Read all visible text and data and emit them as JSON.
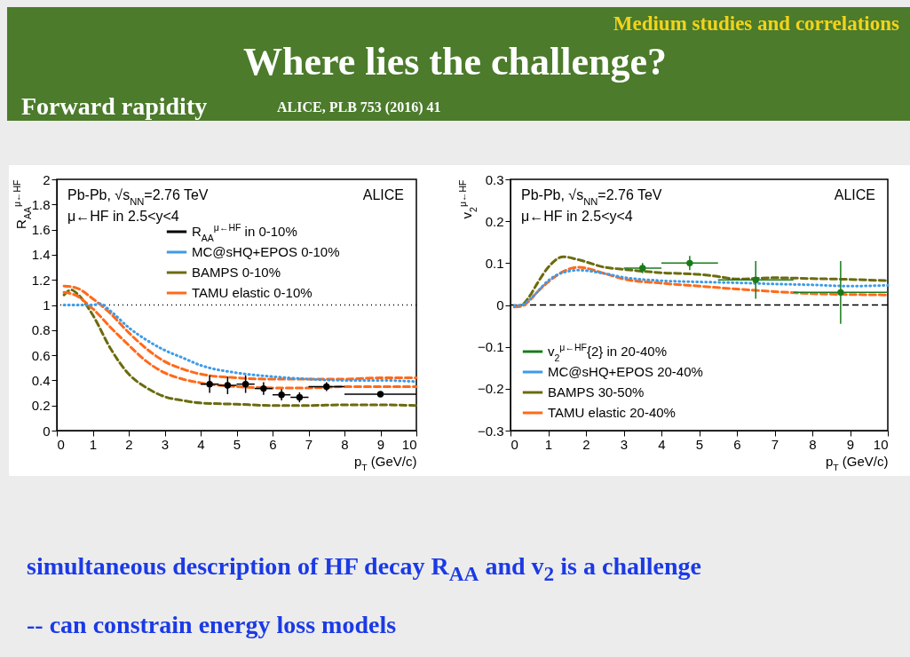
{
  "chart_data": [
    {
      "type": "line",
      "title": "Where lies the challenge?",
      "annotations": [
        "Pb-Pb, √s$_{NN}$=2.76 TeV",
        "μ←HF in 2.5<y<4",
        "ALICE",
        "Forward rapidity",
        "ALICE, PLB 753 (2016) 41",
        "simultaneous description of HF decay R$_{AA}$ and v$_{2}$ is a challenge",
        "-- can constrain energy loss models",
        "Medium studies and correlations"
      ],
      "xlabel": "p$_{T}$ (GeV/c)",
      "ylabel": "R$_{AA}$$^{μ←HF}$",
      "xlim": [
        0,
        10
      ],
      "xticks": [
        0,
        1,
        2,
        3,
        4,
        5,
        6,
        7,
        8,
        9,
        10
      ],
      "ylim": [
        0,
        2
      ],
      "yticks": [
        0,
        0.2,
        0.4,
        0.6,
        0.8,
        1,
        1.2,
        1.4,
        1.6,
        1.8,
        2
      ],
      "legend": "top right",
      "ref_lines": [
        {
          "axis": "y",
          "value": 1,
          "color": "#000000",
          "line_style": "dotted"
        }
      ],
      "series": [
        {
          "name": "R$_{AA}$$^{μ←HF}$ in 0-10%",
          "type": "scatter",
          "marker": "circle",
          "color": "#000000",
          "x": [
            4.25,
            4.75,
            5.25,
            5.75,
            6.25,
            6.75,
            7.5,
            9
          ],
          "values": [
            0.37,
            0.36,
            0.37,
            0.335,
            0.285,
            0.265,
            0.35,
            0.29
          ],
          "errors": [
            0.07,
            0.07,
            0.07,
            0.05,
            0.045,
            0.04,
            0.035,
            0.02
          ],
          "xerrors": [
            0.25,
            0.25,
            0.25,
            0.25,
            0.25,
            0.25,
            0.5,
            1
          ]
        },
        {
          "name": "MC@sHQ+EPOS 0-10%",
          "type": "line",
          "line_style": "dotted",
          "color": "#3d9be9",
          "x": [
            0.2,
            0.6,
            1,
            1.2,
            1.5,
            2,
            2.5,
            3,
            3.5,
            4,
            5,
            6,
            7,
            8,
            9,
            10
          ],
          "values": [
            1,
            1,
            1,
            1.01,
            0.95,
            0.82,
            0.72,
            0.64,
            0.58,
            0.52,
            0.46,
            0.43,
            0.41,
            0.4,
            0.4,
            0.39
          ]
        },
        {
          "name": "BAMPS 0-10%",
          "type": "line",
          "line_style": "dashed",
          "color": "#6b6b10",
          "x": [
            0.2,
            0.4,
            0.6,
            1,
            1.5,
            2,
            2.5,
            3,
            3.5,
            4,
            5,
            6,
            7,
            8,
            9,
            10
          ],
          "values": [
            1.08,
            1.12,
            1.08,
            0.92,
            0.65,
            0.45,
            0.34,
            0.27,
            0.24,
            0.22,
            0.21,
            0.2,
            0.2,
            0.205,
            0.205,
            0.2
          ]
        },
        {
          "name": "TAMU elastic 0-10%",
          "type": "line",
          "line_style": "dashed",
          "color": "#ff6a1a",
          "x": [
            0.2,
            0.5,
            1,
            1.5,
            2,
            2.5,
            3,
            3.5,
            4,
            5,
            6,
            7,
            8,
            9,
            10
          ],
          "values": [
            1.15,
            1.14,
            1.05,
            0.93,
            0.78,
            0.65,
            0.55,
            0.49,
            0.45,
            0.42,
            0.41,
            0.41,
            0.41,
            0.42,
            0.42
          ]
        },
        {
          "type": "line",
          "line_style": "dashed",
          "color": "#ff6a1a",
          "x": [
            0.2,
            0.5,
            1,
            1.5,
            2,
            2.5,
            3,
            3.5,
            4,
            5,
            6,
            7,
            8,
            9,
            10
          ],
          "values": [
            1.1,
            1.08,
            0.97,
            0.82,
            0.68,
            0.55,
            0.46,
            0.41,
            0.38,
            0.35,
            0.34,
            0.34,
            0.35,
            0.35,
            0.35
          ]
        }
      ]
    },
    {
      "type": "line",
      "annotations": [
        "Pb-Pb, √s$_{NN}$=2.76 TeV",
        "μ←HF in 2.5<y<4",
        "ALICE"
      ],
      "xlabel": "p$_{T}$ (GeV/c)",
      "ylabel": "v$_{2}$$^{μ←HF}$",
      "xlim": [
        0,
        10
      ],
      "xticks": [
        0,
        1,
        2,
        3,
        4,
        5,
        6,
        7,
        8,
        9,
        10
      ],
      "ylim": [
        -0.3,
        0.3
      ],
      "yticks": [
        {
          "value": -0.3,
          "label": "−0.3"
        },
        {
          "value": -0.2,
          "label": "−0.2"
        },
        {
          "value": -0.1,
          "label": "−0.1"
        },
        0,
        0.1,
        0.2,
        0.3
      ],
      "legend": "bottom left",
      "ref_lines": [
        {
          "axis": "y",
          "value": 0,
          "color": "#000000",
          "line_style": "dashed"
        }
      ],
      "series": [
        {
          "name": "v$_{2}$$^{μ←HF}${2} in 20-40%",
          "type": "scatter",
          "marker": "circle",
          "color": "#1a7a1a",
          "x": [
            3.5,
            4.75,
            6.5,
            8.75
          ],
          "values": [
            0.088,
            0.1,
            0.06,
            0.03
          ],
          "errors": [
            0.012,
            0.017,
            0.045,
            0.075
          ],
          "xerrors": [
            0.5,
            0.75,
            1,
            1.25
          ]
        },
        {
          "name": "MC@sHQ+EPOS 20-40%",
          "type": "line",
          "line_style": "dotted",
          "color": "#3d9be9",
          "x": [
            0.1,
            0.3,
            0.5,
            0.7,
            1,
            1.5,
            1.8,
            2.5,
            3,
            4,
            5,
            6,
            7,
            8,
            9,
            10
          ],
          "values": [
            -0.002,
            0,
            0.012,
            0.03,
            0.058,
            0.08,
            0.083,
            0.075,
            0.066,
            0.058,
            0.055,
            0.053,
            0.05,
            0.048,
            0.045,
            0.047
          ]
        },
        {
          "name": "BAMPS 30-50%",
          "type": "line",
          "line_style": "dashed",
          "color": "#6b6b10",
          "x": [
            0.1,
            0.3,
            0.5,
            0.7,
            1,
            1.4,
            1.8,
            2.5,
            3,
            4,
            5,
            5.5,
            6,
            7,
            8,
            9,
            10
          ],
          "values": [
            -0.003,
            0,
            0.02,
            0.05,
            0.09,
            0.115,
            0.108,
            0.09,
            0.085,
            0.077,
            0.073,
            0.068,
            0.062,
            0.065,
            0.063,
            0.061,
            0.058
          ]
        },
        {
          "name": "TAMU elastic 20-40%",
          "type": "line",
          "line_style": "dashed",
          "color": "#ff6a1a",
          "x": [
            0.1,
            0.3,
            0.5,
            0.7,
            1,
            1.4,
            1.8,
            2.5,
            3,
            4,
            5,
            6,
            7,
            8,
            9,
            10
          ],
          "values": [
            -0.005,
            -0.003,
            0.01,
            0.03,
            0.055,
            0.08,
            0.09,
            0.075,
            0.062,
            0.052,
            0.045,
            0.038,
            0.032,
            0.027,
            0.025,
            0.024
          ]
        }
      ]
    }
  ]
}
